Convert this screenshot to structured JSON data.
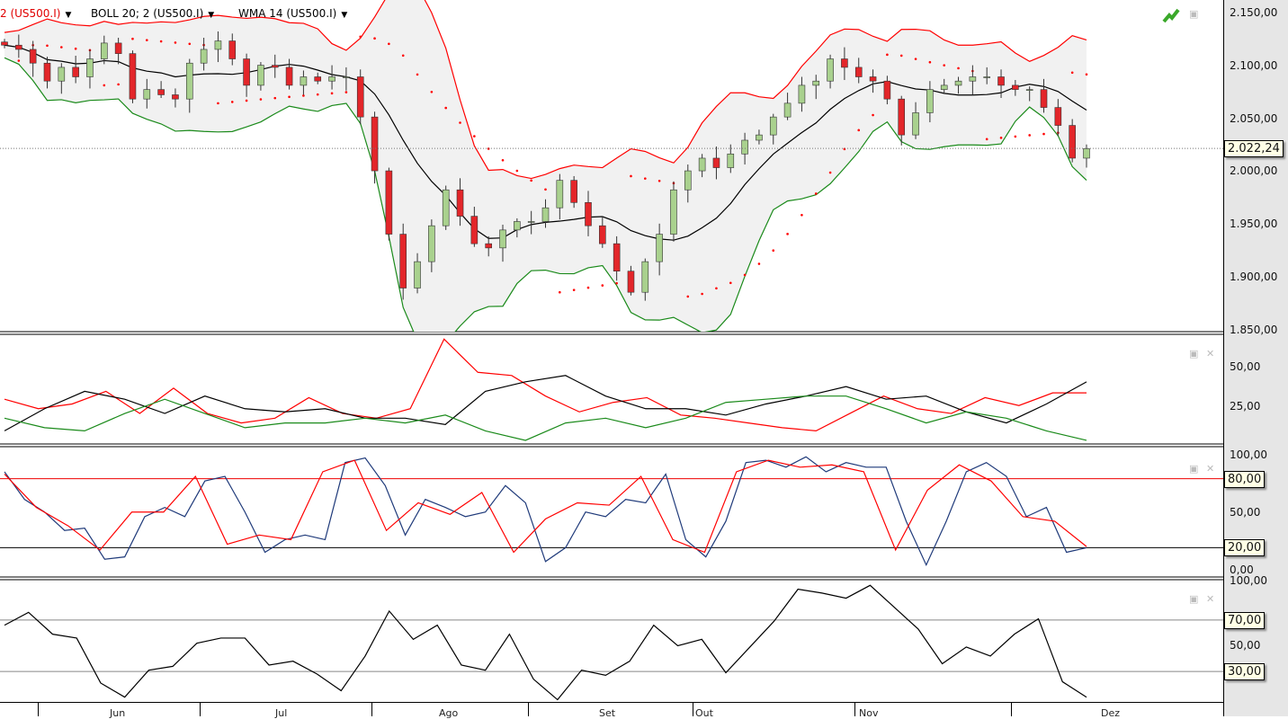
{
  "header": {
    "legends": [
      {
        "label": "2 (US500.I)",
        "color": "#e00000"
      },
      {
        "label": "BOLL 20; 2 (US500.I)",
        "color": "#000000"
      },
      {
        "label": "WMA 14 (US500.I)",
        "color": "#000000"
      }
    ],
    "icons": [
      "chart-trend-icon",
      "save-icon"
    ]
  },
  "chart_data": [
    {
      "type": "candlestick",
      "symbol": "US500.I",
      "ylim": [
        1850,
        2150
      ],
      "y_ticks": [
        "2.150,00",
        "2.100,00",
        "2.050,00",
        "2.000,00",
        "1.950,00",
        "1.900,00",
        "1.850,00"
      ],
      "current_price": "2.022,24",
      "x_ticks": [
        "Jun",
        "Jul",
        "Ago",
        "Set",
        "Out",
        "Nov",
        "Dez"
      ],
      "overlays": [
        "Parabolic SAR",
        "BOLL 20; 2",
        "WMA 14"
      ],
      "colors": {
        "up": "#a9d18e",
        "down": "#e3262a",
        "upper_band": "#ff0000",
        "lower_band": "#1a8a1a",
        "middle": "#000000",
        "sar": "#ff0000"
      },
      "closes": [
        2120,
        2116,
        2103,
        2086,
        2099,
        2090,
        2107,
        2122,
        2112,
        2069,
        2078,
        2073,
        2069,
        2103,
        2116,
        2124,
        2107,
        2082,
        2101,
        2099,
        2082,
        2090,
        2086,
        2090,
        2090,
        2052,
        2001,
        1941,
        1890,
        1915,
        1949,
        1983,
        1958,
        1932,
        1928,
        1945,
        1953,
        1953,
        1966,
        1992,
        1971,
        1949,
        1932,
        1906,
        1886,
        1915,
        1941,
        1983,
        2001,
        2013,
        2004,
        2017,
        2030,
        2035,
        2052,
        2065,
        2082,
        2086,
        2107,
        2099,
        2090,
        2086,
        2069,
        2035,
        2056,
        2078,
        2082,
        2086,
        2090,
        2090,
        2082,
        2078,
        2078,
        2061,
        2044,
        2013,
        2022
      ]
    },
    {
      "type": "line",
      "y_ticks": [
        "50,00",
        "25,00"
      ],
      "ylim": [
        0,
        70
      ],
      "series": [
        {
          "color": "#ff0000",
          "values": [
            30,
            24,
            27,
            35,
            21,
            37,
            21,
            15,
            18,
            31,
            21,
            18,
            24,
            68,
            47,
            45,
            32,
            22,
            28,
            31,
            20,
            18,
            15,
            12,
            10,
            21,
            32,
            24,
            21,
            31,
            26,
            34,
            34
          ]
        },
        {
          "color": "#000000",
          "values": [
            10,
            24,
            35,
            30,
            21,
            32,
            24,
            22,
            24,
            18,
            18,
            14,
            35,
            41,
            45,
            32,
            24,
            24,
            20,
            27,
            32,
            38,
            30,
            32,
            22,
            15,
            27,
            41
          ]
        },
        {
          "color": "#1a8a1a",
          "values": [
            18,
            12,
            10,
            21,
            30,
            21,
            12,
            15,
            15,
            18,
            15,
            20,
            10,
            4,
            15,
            18,
            12,
            18,
            28,
            30,
            32,
            32,
            24,
            15,
            22,
            18,
            10,
            4
          ]
        }
      ]
    },
    {
      "type": "line",
      "y_ticks": [
        "100,00",
        "50,00",
        "0,00"
      ],
      "levels": [
        "80,00",
        "20,00"
      ],
      "ylim": [
        0,
        100
      ],
      "series": [
        {
          "color": "#1f3a7a",
          "values": [
            86,
            62,
            51,
            35,
            37,
            10,
            12,
            47,
            55,
            47,
            78,
            82,
            51,
            16,
            27,
            31,
            27,
            94,
            98,
            74,
            31,
            62,
            55,
            47,
            51,
            74,
            59,
            8,
            20,
            51,
            47,
            62,
            59,
            84,
            27,
            12,
            43,
            94,
            96,
            90,
            99,
            86,
            94,
            90,
            90,
            43,
            5,
            43,
            86,
            94,
            82,
            47,
            55,
            16,
            20
          ]
        },
        {
          "color": "#ff0000",
          "values": [
            84,
            55,
            39,
            18,
            51,
            51,
            82,
            23,
            31,
            27,
            86,
            96,
            35,
            59,
            49,
            68,
            16,
            45,
            59,
            57,
            82,
            27,
            16,
            86,
            96,
            90,
            92,
            86,
            18,
            70,
            92,
            78,
            47,
            43,
            21
          ]
        }
      ]
    },
    {
      "type": "line",
      "y_ticks": [
        "100,00",
        "50,00"
      ],
      "levels": [
        "70,00",
        "30,00"
      ],
      "ylim": [
        0,
        100
      ],
      "series": [
        {
          "color": "#000000",
          "values": [
            66,
            76,
            59,
            56,
            21,
            10,
            31,
            34,
            52,
            56,
            56,
            35,
            38,
            28,
            15,
            42,
            77,
            55,
            66,
            35,
            31,
            59,
            24,
            8,
            31,
            27,
            38,
            66,
            50,
            55,
            29,
            49,
            69,
            94,
            91,
            87,
            97,
            80,
            63,
            36,
            49,
            42,
            59,
            71,
            22,
            10
          ]
        }
      ]
    }
  ]
}
